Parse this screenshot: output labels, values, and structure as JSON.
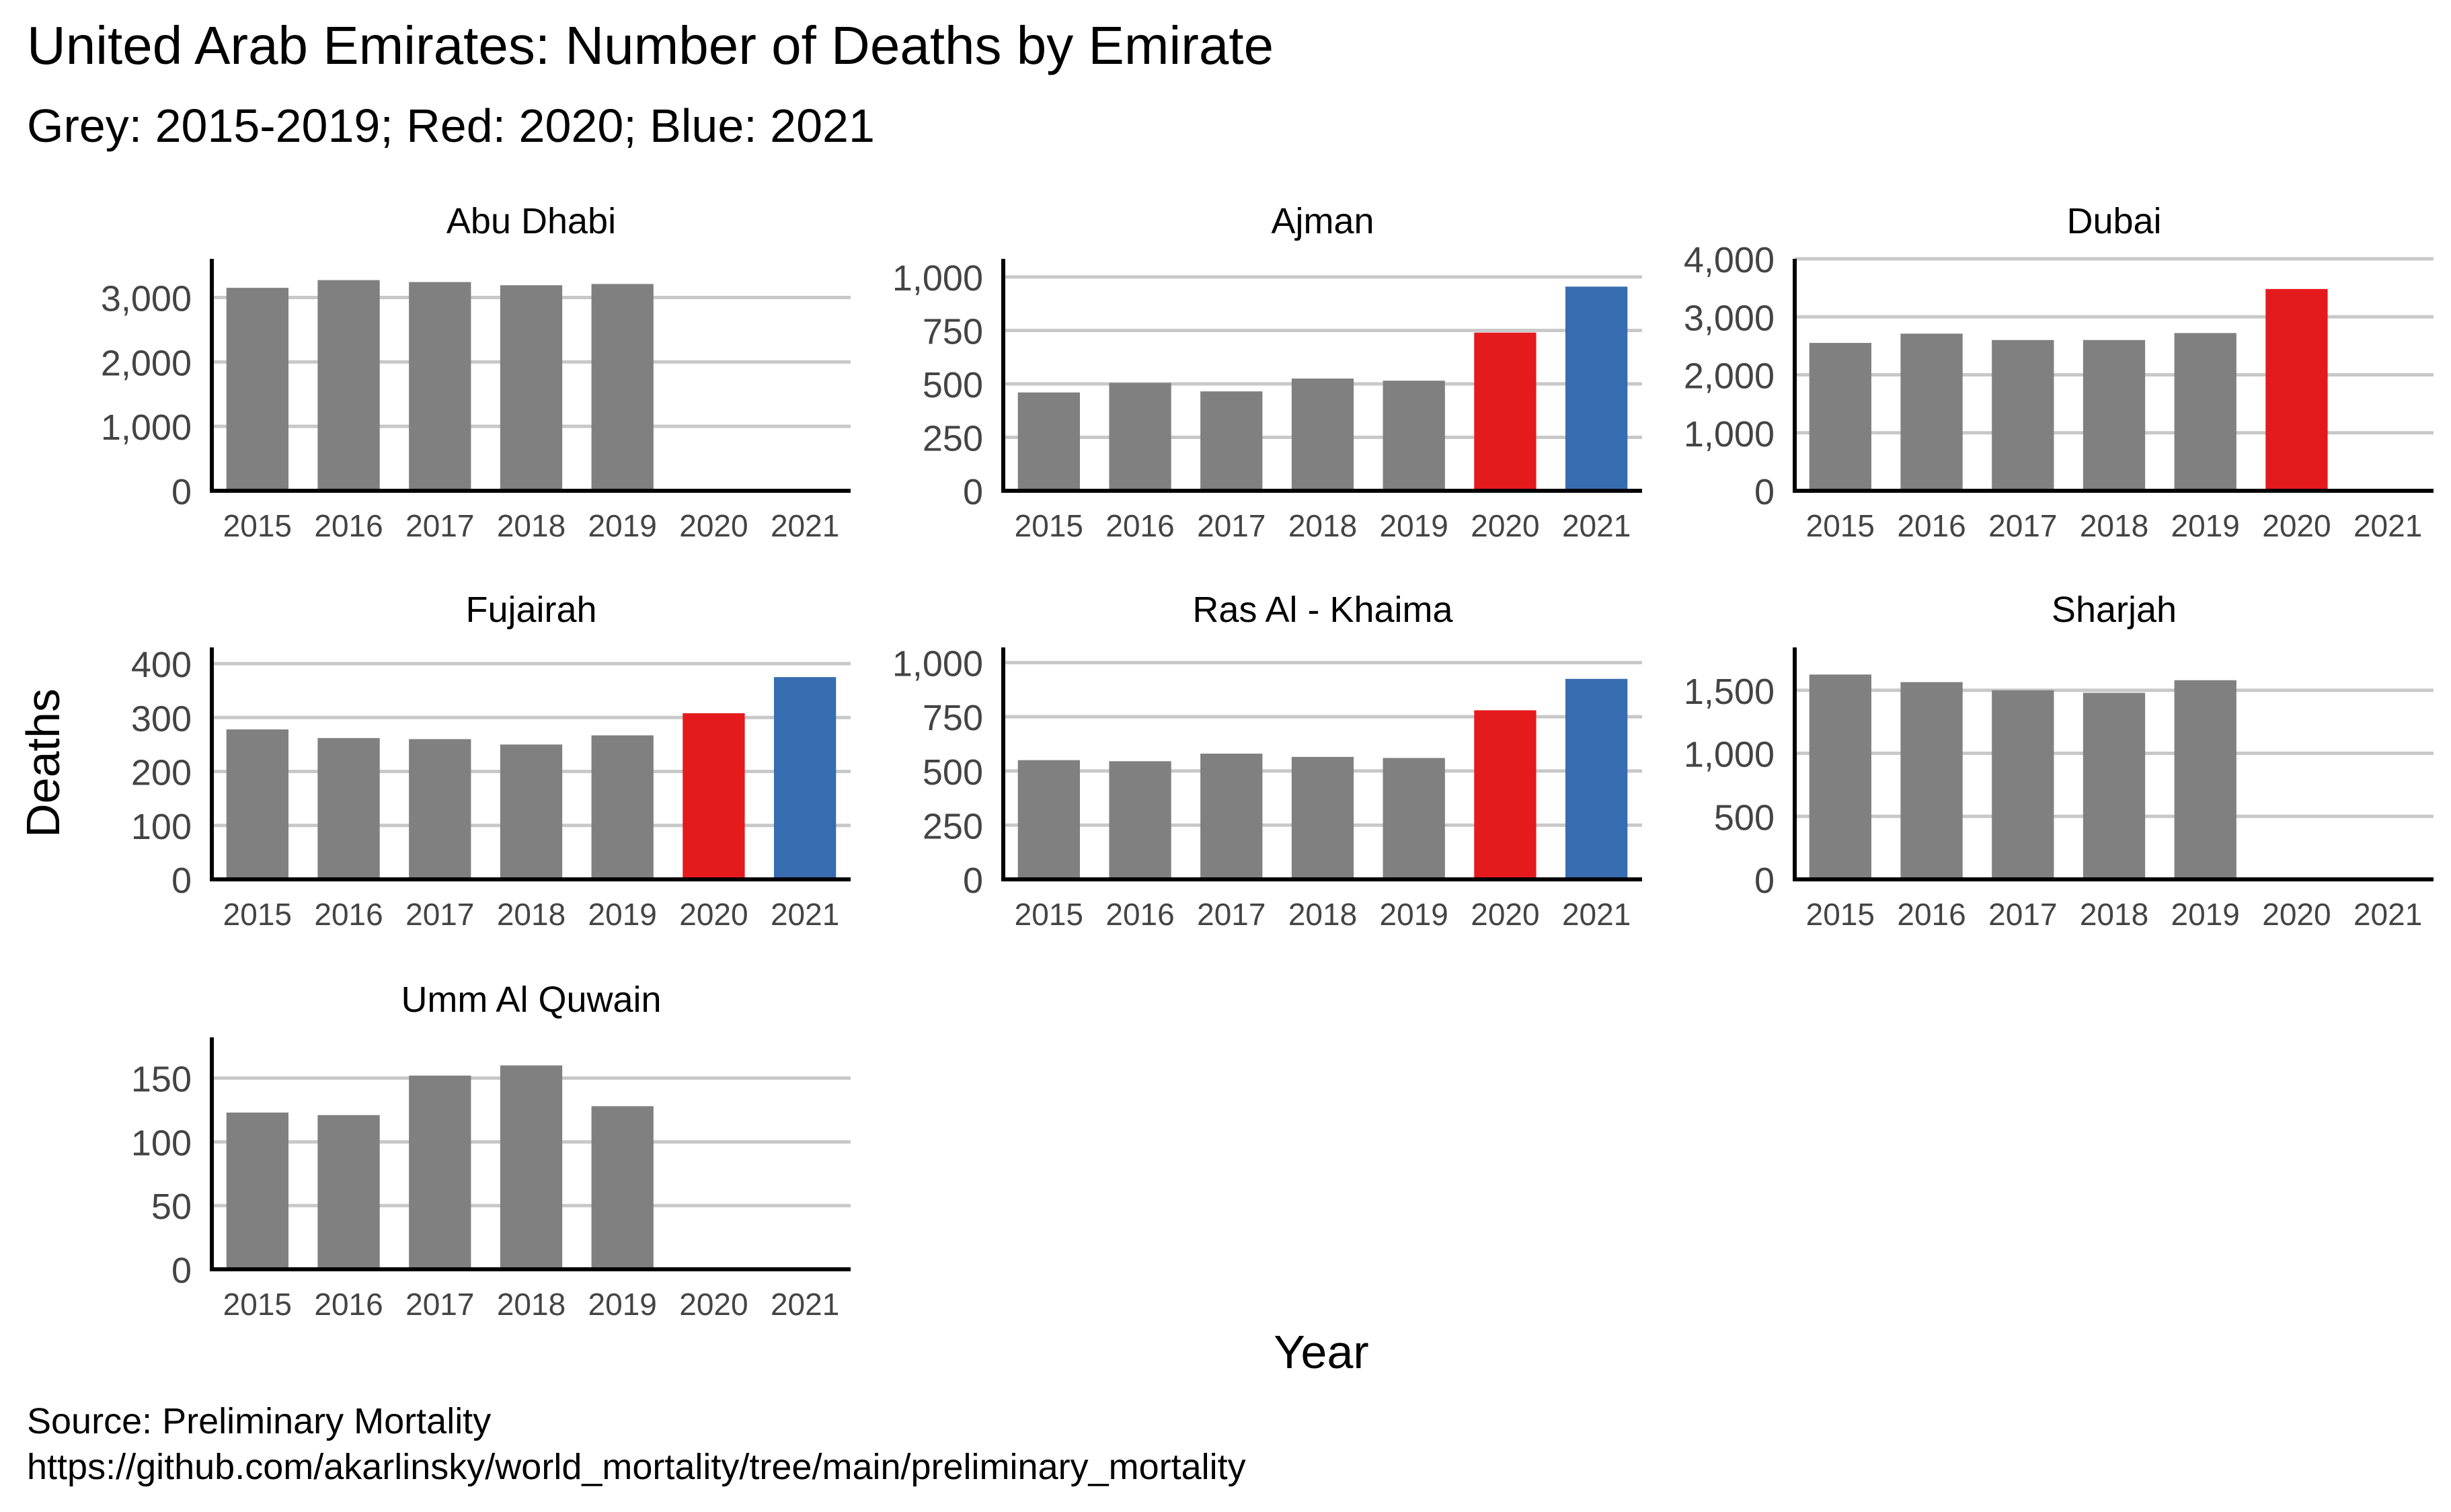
{
  "title": "United Arab Emirates: Number of Deaths by Emirate",
  "subtitle": "Grey: 2015-2019; Red: 2020; Blue: 2021",
  "xlabel": "Year",
  "ylabel": "Deaths",
  "caption_line1": "Source: Preliminary Mortality",
  "caption_line2": "https://github.com/akarlinsky/world_mortality/tree/main/preliminary_mortality",
  "colors": {
    "baseline": "#808080",
    "y2020": "#e41a1c",
    "y2021": "#386cb0",
    "grid": "#c8c8c8",
    "axis": "#000000"
  },
  "chart_data": [
    {
      "type": "bar",
      "title": "Abu Dhabi",
      "categories": [
        "2015",
        "2016",
        "2017",
        "2018",
        "2019",
        "2020",
        "2021"
      ],
      "values": [
        3150,
        3270,
        3240,
        3190,
        3210,
        null,
        null
      ],
      "ylim": [
        0,
        3600
      ],
      "yticks": [
        0,
        1000,
        2000,
        3000
      ],
      "ytick_labels": [
        "0",
        "1,000",
        "2,000",
        "3,000"
      ]
    },
    {
      "type": "bar",
      "title": "Ajman",
      "categories": [
        "2015",
        "2016",
        "2017",
        "2018",
        "2019",
        "2020",
        "2021"
      ],
      "values": [
        460,
        505,
        465,
        525,
        515,
        740,
        955
      ],
      "ylim": [
        0,
        1085
      ],
      "yticks": [
        0,
        250,
        500,
        750,
        1000
      ],
      "ytick_labels": [
        "0",
        "250",
        "500",
        "750",
        "1,000"
      ]
    },
    {
      "type": "bar",
      "title": "Dubai",
      "categories": [
        "2015",
        "2016",
        "2017",
        "2018",
        "2019",
        "2020",
        "2021"
      ],
      "values": [
        2550,
        2710,
        2600,
        2600,
        2720,
        3480,
        null
      ],
      "ylim": [
        0,
        4000
      ],
      "yticks": [
        0,
        1000,
        2000,
        3000,
        4000
      ],
      "ytick_labels": [
        "0",
        "1,000",
        "2,000",
        "3,000",
        "4,000"
      ]
    },
    {
      "type": "bar",
      "title": "Fujairah",
      "categories": [
        "2015",
        "2016",
        "2017",
        "2018",
        "2019",
        "2020",
        "2021"
      ],
      "values": [
        278,
        262,
        260,
        250,
        267,
        308,
        375
      ],
      "ylim": [
        0,
        430
      ],
      "yticks": [
        0,
        100,
        200,
        300,
        400
      ],
      "ytick_labels": [
        "0",
        "100",
        "200",
        "300",
        "400"
      ]
    },
    {
      "type": "bar",
      "title": "Ras Al - Khaima",
      "categories": [
        "2015",
        "2016",
        "2017",
        "2018",
        "2019",
        "2020",
        "2021"
      ],
      "values": [
        550,
        545,
        580,
        565,
        560,
        780,
        925
      ],
      "ylim": [
        0,
        1070
      ],
      "yticks": [
        0,
        250,
        500,
        750,
        1000
      ],
      "ytick_labels": [
        "0",
        "250",
        "500",
        "750",
        "1,000"
      ]
    },
    {
      "type": "bar",
      "title": "Sharjah",
      "categories": [
        "2015",
        "2016",
        "2017",
        "2018",
        "2019",
        "2020",
        "2021"
      ],
      "values": [
        1625,
        1565,
        1500,
        1480,
        1580,
        null,
        null
      ],
      "ylim": [
        0,
        1840
      ],
      "yticks": [
        0,
        500,
        1000,
        1500
      ],
      "ytick_labels": [
        "0",
        "500",
        "1,000",
        "1,500"
      ]
    },
    {
      "type": "bar",
      "title": "Umm Al Quwain",
      "categories": [
        "2015",
        "2016",
        "2017",
        "2018",
        "2019",
        "2020",
        "2021"
      ],
      "values": [
        123,
        121,
        152,
        160,
        128,
        null,
        null
      ],
      "ylim": [
        0,
        182
      ],
      "yticks": [
        0,
        50,
        100,
        150
      ],
      "ytick_labels": [
        "0",
        "50",
        "100",
        "150"
      ]
    }
  ]
}
